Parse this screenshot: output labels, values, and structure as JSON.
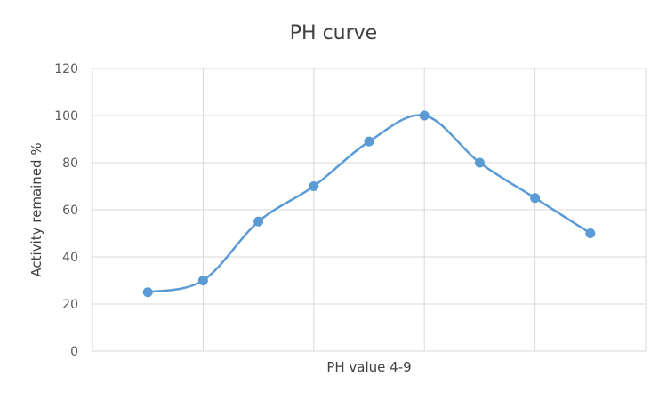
{
  "chart_data": {
    "type": "line",
    "title": "PH curve",
    "xlabel": "PH value 4-9",
    "ylabel": "Activity remained %",
    "smooth": true,
    "grid": true,
    "legend": "none",
    "x": [
      1,
      2,
      3,
      4,
      5,
      6,
      7,
      8,
      9
    ],
    "ylim": [
      0,
      120
    ],
    "yticks": [
      0,
      20,
      40,
      60,
      80,
      100,
      120
    ],
    "series": [
      {
        "values": [
          25,
          30,
          55,
          70,
          89,
          100,
          80,
          65,
          50
        ],
        "color": "#5b9bd5"
      }
    ]
  }
}
